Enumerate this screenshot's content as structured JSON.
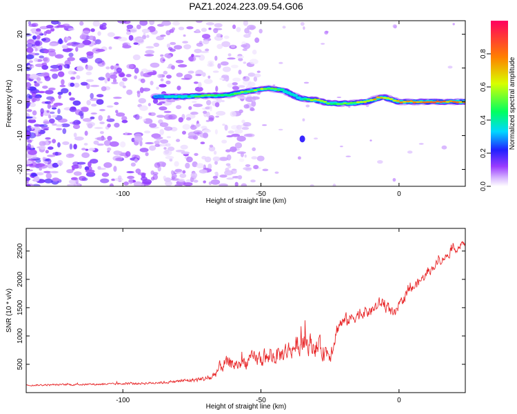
{
  "title": "PAZ1.2024.223.09.54.G06",
  "chart_data": [
    {
      "type": "heatmap",
      "xlabel": "Height of straight line (km)",
      "ylabel": "Frequency (Hz)",
      "xlim": [
        -135,
        24
      ],
      "ylim": [
        -25,
        24
      ],
      "x_ticks": [
        -100,
        -50,
        0
      ],
      "y_ticks": [
        -20,
        -10,
        0,
        10,
        20
      ],
      "x_tick_labels": [
        "-100",
        "-50",
        "0"
      ],
      "y_tick_labels": [
        "-20",
        "-10",
        "0",
        "10",
        "20"
      ],
      "colorbar": {
        "label": "Normalized spectral amplitude",
        "range": [
          0,
          1
        ],
        "ticks": [
          0,
          0.2,
          0.4,
          0.6,
          0.8
        ],
        "tick_labels": [
          "0.0",
          "0.2",
          "0.4",
          "0.6",
          "0.8"
        ]
      },
      "ridge": {
        "x": [
          -88,
          -80,
          -70,
          -62,
          -55,
          -48,
          -42,
          -36,
          -30,
          -25,
          -18,
          -12,
          -6,
          0,
          6,
          12,
          18,
          24
        ],
        "frequency": [
          1.5,
          1.5,
          1.8,
          2.0,
          3.0,
          4.0,
          3.5,
          1.0,
          0.5,
          -0.5,
          -0.5,
          0,
          1.5,
          0,
          0,
          0,
          0,
          0
        ],
        "amplitude": [
          0.35,
          0.4,
          0.55,
          0.5,
          0.6,
          0.65,
          0.45,
          0.35,
          0.75,
          0.55,
          0.6,
          0.7,
          0.8,
          0.75,
          0.95,
          0.9,
          0.85,
          0.95
        ]
      },
      "noise_region_x": [
        -135,
        -65
      ],
      "noise_amplitude_max": 0.2
    },
    {
      "type": "line",
      "xlabel": "Height of straight line (km)",
      "ylabel": "SNR (10 * v/v)",
      "xlim": [
        -135,
        24
      ],
      "ylim": [
        0,
        2900
      ],
      "x_ticks": [
        -100,
        -50,
        0
      ],
      "y_ticks": [
        500,
        1000,
        1500,
        2000,
        2500
      ],
      "x_tick_labels": [
        "-100",
        "-50",
        "0"
      ],
      "y_tick_labels": [
        "500",
        "1000",
        "1500",
        "2000",
        "2500"
      ],
      "color": "#e8282a",
      "series": [
        {
          "x": [
            -135,
            -120,
            -105,
            -95,
            -85,
            -75,
            -68,
            -64,
            -58,
            -52,
            -47,
            -42,
            -38,
            -34,
            -30,
            -25,
            -22,
            -18,
            -14,
            -10,
            -6,
            -2,
            2,
            6,
            10,
            14,
            18,
            24
          ],
          "y": [
            130,
            140,
            150,
            160,
            180,
            220,
            260,
            500,
            500,
            600,
            600,
            700,
            800,
            900,
            800,
            700,
            1200,
            1300,
            1400,
            1450,
            1600,
            1350,
            1700,
            1900,
            2100,
            2300,
            2450,
            2650
          ],
          "noise_amplitude": [
            40,
            50,
            50,
            60,
            70,
            100,
            150,
            400,
            350,
            400,
            450,
            500,
            500,
            550,
            550,
            500,
            400,
            350,
            300,
            300,
            350,
            300,
            250,
            250,
            200,
            200,
            180,
            150
          ]
        }
      ]
    }
  ]
}
